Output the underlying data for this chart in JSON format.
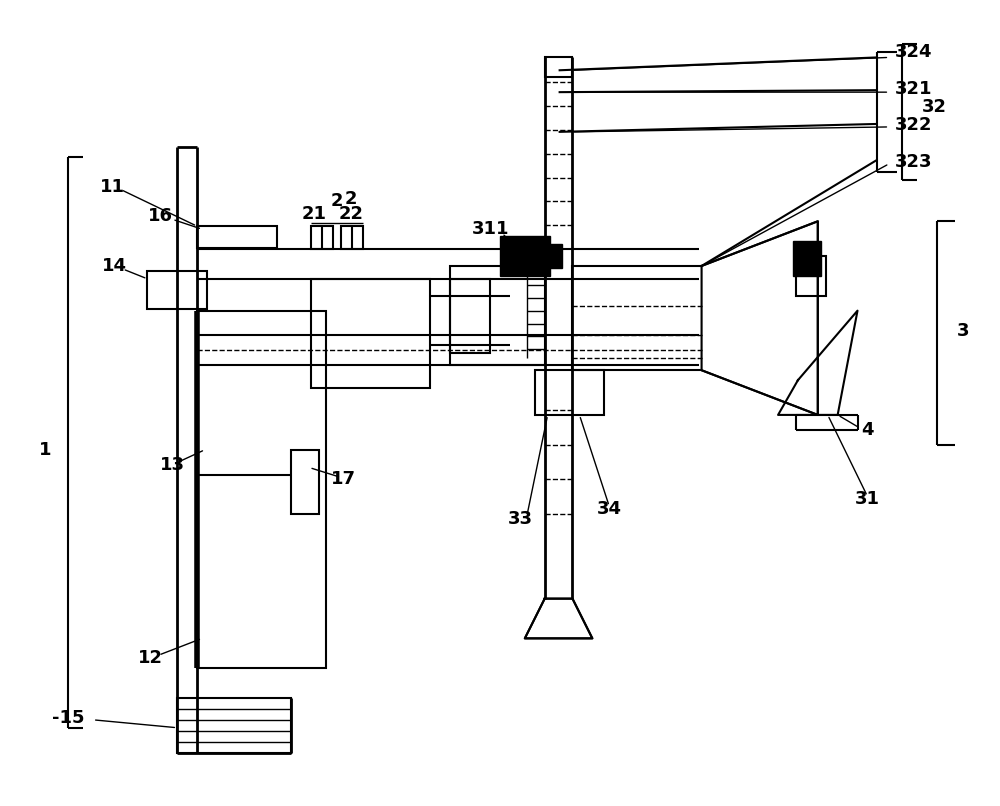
{
  "bg_color": "#ffffff",
  "line_color": "#000000",
  "fig_w": 10.0,
  "fig_h": 8.06,
  "dpi": 100
}
